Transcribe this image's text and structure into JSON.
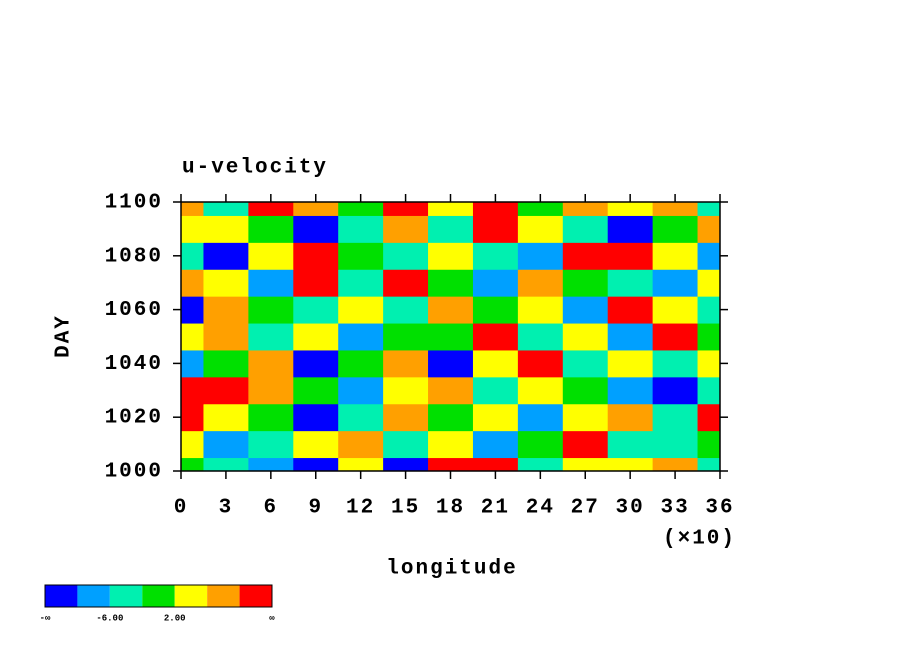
{
  "chart_data": {
    "type": "contour",
    "title": "u-velocity",
    "x_label": "longitude",
    "x_multiplier": "(×10)",
    "y_label": "DAY",
    "x": [
      0,
      3,
      6,
      9,
      12,
      15,
      18,
      21,
      24,
      27,
      30,
      33,
      36
    ],
    "y": [
      1000,
      1010,
      1020,
      1030,
      1040,
      1050,
      1060,
      1070,
      1080,
      1090,
      1100
    ],
    "z": [
      [
        0,
        -4,
        -8,
        -12,
        2,
        -12,
        12,
        14,
        -3,
        5,
        3,
        8,
        -4
      ],
      [
        4,
        -8,
        -3,
        3,
        9,
        -5,
        2,
        -7,
        1,
        10,
        -4,
        -6,
        0
      ],
      [
        12,
        4,
        0,
        -12,
        -4,
        7,
        -2,
        3,
        -9,
        4,
        8,
        -5,
        11
      ],
      [
        11,
        13,
        6,
        0,
        -8,
        2,
        7,
        -4,
        5,
        -2,
        -10,
        -13,
        -6
      ],
      [
        -7,
        -2,
        8,
        -12,
        1,
        9,
        -11,
        4,
        11,
        -3,
        2,
        -4,
        5
      ],
      [
        5,
        9,
        -3,
        4,
        -9,
        1,
        -2,
        10,
        -5,
        3,
        -8,
        12,
        1
      ],
      [
        -13,
        6,
        0,
        -5,
        2,
        -6,
        7,
        -2,
        3,
        -7,
        11,
        4,
        -3
      ],
      [
        9,
        2,
        -8,
        11,
        -3,
        10,
        -1,
        -10,
        6,
        1,
        -4,
        -9,
        2
      ],
      [
        -4,
        -11,
        3,
        12,
        0,
        -6,
        5,
        -3,
        -8,
        10,
        14,
        4,
        -7
      ],
      [
        3,
        5,
        -2,
        -13,
        -6,
        8,
        -3,
        12,
        2,
        -5,
        -11,
        -2,
        6
      ],
      [
        8,
        -3,
        10,
        6,
        -2,
        12,
        4,
        14,
        -1,
        7,
        3,
        9,
        -4
      ]
    ],
    "xlim": [
      0,
      36
    ],
    "xticks": [
      0,
      3,
      6,
      9,
      12,
      15,
      18,
      21,
      24,
      27,
      30,
      33,
      36
    ],
    "ylim": [
      1000,
      1100
    ],
    "yticks": [
      1000,
      1020,
      1040,
      1060,
      1080,
      1100
    ],
    "colorbar": {
      "colors": [
        "#0000ff",
        "#00a0ff",
        "#00f0b0",
        "#00e000",
        "#ffff00",
        "#ffa000",
        "#ff0000"
      ],
      "levels": [
        -10,
        -6,
        -2,
        2,
        6,
        10
      ],
      "labels": [
        "-∞",
        null,
        "-6.00",
        null,
        "2.00",
        null,
        null,
        "∞"
      ]
    }
  }
}
